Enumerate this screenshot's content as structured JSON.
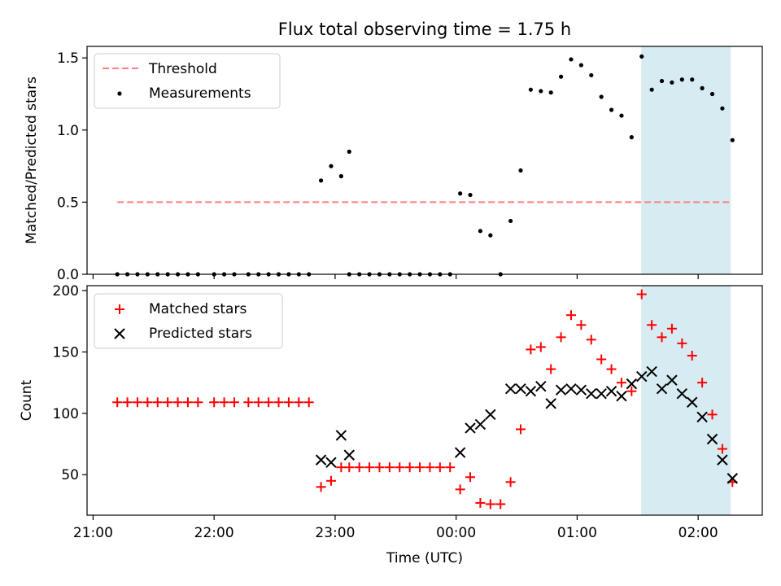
{
  "chart_data": {
    "title": "Flux total observing time = 1.75 h",
    "xlabel": "Time (UTC)",
    "x_ticks": [
      "21:00",
      "22:00",
      "23:00",
      "00:00",
      "01:00",
      "02:00"
    ],
    "x_tick_hours": [
      21,
      22,
      23,
      24,
      25,
      26
    ],
    "xlim_hours": [
      20.95,
      26.53
    ],
    "shaded_span_hours": [
      25.53,
      26.27
    ],
    "shade_color": "#add8e6",
    "panels": [
      {
        "type": "scatter",
        "ylabel": "Matched/Predicted stars",
        "ylim": [
          0,
          1.58
        ],
        "y_ticks": [
          0.0,
          0.5,
          1.0,
          1.5
        ],
        "y_tick_labels": [
          "0.0",
          "0.5",
          "1.0",
          "1.5"
        ],
        "legend": {
          "position": "top-left",
          "entries": [
            "Threshold",
            "Measurements"
          ]
        },
        "threshold": {
          "name": "Threshold",
          "value": 0.5,
          "x_range_hours": [
            21.2,
            26.27
          ],
          "color": "#ff7f7f"
        },
        "series": [
          {
            "name": "Measurements",
            "marker": "dot",
            "color": "#000000",
            "points": [
              [
                "21:12",
                0
              ],
              [
                "21:17",
                0
              ],
              [
                "21:22",
                0
              ],
              [
                "21:27",
                0
              ],
              [
                "21:32",
                0
              ],
              [
                "21:37",
                0
              ],
              [
                "21:42",
                0
              ],
              [
                "21:47",
                0
              ],
              [
                "21:52",
                0
              ],
              [
                "22:00",
                0
              ],
              [
                "22:05",
                0
              ],
              [
                "22:10",
                0
              ],
              [
                "22:17",
                0
              ],
              [
                "22:22",
                0
              ],
              [
                "22:27",
                0
              ],
              [
                "22:32",
                0
              ],
              [
                "22:37",
                0
              ],
              [
                "22:42",
                0
              ],
              [
                "22:47",
                0
              ],
              [
                "22:53",
                0.65
              ],
              [
                "22:58",
                0.75
              ],
              [
                "23:03",
                0.68
              ],
              [
                "23:07",
                0.85
              ],
              [
                "23:07",
                0
              ],
              [
                "23:12",
                0
              ],
              [
                "23:17",
                0
              ],
              [
                "23:22",
                0
              ],
              [
                "23:27",
                0
              ],
              [
                "23:32",
                0
              ],
              [
                "23:37",
                0
              ],
              [
                "23:42",
                0
              ],
              [
                "23:47",
                0
              ],
              [
                "23:52",
                0
              ],
              [
                "23:57",
                0
              ],
              [
                "00:02",
                0.56
              ],
              [
                "00:07",
                0.55
              ],
              [
                "00:12",
                0.3
              ],
              [
                "00:17",
                0.27
              ],
              [
                "00:22",
                0
              ],
              [
                "00:27",
                0.37
              ],
              [
                "00:32",
                0.72
              ],
              [
                "00:37",
                1.28
              ],
              [
                "00:42",
                1.27
              ],
              [
                "00:47",
                1.26
              ],
              [
                "00:52",
                1.37
              ],
              [
                "00:57",
                1.49
              ],
              [
                "01:02",
                1.45
              ],
              [
                "01:07",
                1.38
              ],
              [
                "01:12",
                1.23
              ],
              [
                "01:17",
                1.14
              ],
              [
                "01:22",
                1.1
              ],
              [
                "01:27",
                0.95
              ],
              [
                "01:32",
                1.51
              ],
              [
                "01:37",
                1.28
              ],
              [
                "01:42",
                1.34
              ],
              [
                "01:47",
                1.33
              ],
              [
                "01:52",
                1.35
              ],
              [
                "01:57",
                1.35
              ],
              [
                "02:02",
                1.29
              ],
              [
                "02:07",
                1.25
              ],
              [
                "02:12",
                1.15
              ],
              [
                "02:17",
                0.93
              ]
            ]
          }
        ]
      },
      {
        "type": "scatter",
        "ylabel": "Count",
        "ylim": [
          17,
          204
        ],
        "y_ticks": [
          50,
          100,
          150,
          200
        ],
        "y_tick_labels": [
          "50",
          "100",
          "150",
          "200"
        ],
        "legend": {
          "position": "top-left",
          "entries": [
            "Matched stars",
            "Predicted stars"
          ]
        },
        "series": [
          {
            "name": "Matched stars",
            "marker": "plus",
            "color": "#ff0000",
            "points": [
              [
                "21:12",
                109
              ],
              [
                "21:17",
                109
              ],
              [
                "21:22",
                109
              ],
              [
                "21:27",
                109
              ],
              [
                "21:32",
                109
              ],
              [
                "21:37",
                109
              ],
              [
                "21:42",
                109
              ],
              [
                "21:47",
                109
              ],
              [
                "21:52",
                109
              ],
              [
                "22:00",
                109
              ],
              [
                "22:05",
                109
              ],
              [
                "22:10",
                109
              ],
              [
                "22:17",
                109
              ],
              [
                "22:22",
                109
              ],
              [
                "22:27",
                109
              ],
              [
                "22:32",
                109
              ],
              [
                "22:37",
                109
              ],
              [
                "22:42",
                109
              ],
              [
                "22:47",
                109
              ],
              [
                "22:53",
                40
              ],
              [
                "22:58",
                45
              ],
              [
                "23:03",
                56
              ],
              [
                "23:07",
                56
              ],
              [
                "23:12",
                56
              ],
              [
                "23:17",
                56
              ],
              [
                "23:22",
                56
              ],
              [
                "23:27",
                56
              ],
              [
                "23:32",
                56
              ],
              [
                "23:37",
                56
              ],
              [
                "23:42",
                56
              ],
              [
                "23:47",
                56
              ],
              [
                "23:52",
                56
              ],
              [
                "23:57",
                56
              ],
              [
                "00:02",
                38
              ],
              [
                "00:07",
                48
              ],
              [
                "00:12",
                27
              ],
              [
                "00:17",
                26
              ],
              [
                "00:22",
                26
              ],
              [
                "00:27",
                44
              ],
              [
                "00:32",
                87
              ],
              [
                "00:37",
                152
              ],
              [
                "00:42",
                154
              ],
              [
                "00:47",
                136
              ],
              [
                "00:52",
                162
              ],
              [
                "00:57",
                180
              ],
              [
                "01:02",
                172
              ],
              [
                "01:07",
                160
              ],
              [
                "01:12",
                144
              ],
              [
                "01:17",
                136
              ],
              [
                "01:22",
                125
              ],
              [
                "01:27",
                118
              ],
              [
                "01:32",
                197
              ],
              [
                "01:37",
                172
              ],
              [
                "01:42",
                162
              ],
              [
                "01:47",
                169
              ],
              [
                "01:52",
                157
              ],
              [
                "01:57",
                147
              ],
              [
                "02:02",
                125
              ],
              [
                "02:07",
                99
              ],
              [
                "02:12",
                71
              ],
              [
                "02:17",
                44
              ]
            ]
          },
          {
            "name": "Predicted stars",
            "marker": "x",
            "color": "#000000",
            "points": [
              [
                "22:53",
                62
              ],
              [
                "22:58",
                60
              ],
              [
                "23:03",
                82
              ],
              [
                "23:07",
                66
              ],
              [
                "00:02",
                68
              ],
              [
                "00:07",
                88
              ],
              [
                "00:12",
                91
              ],
              [
                "00:17",
                99
              ],
              [
                "00:27",
                120
              ],
              [
                "00:32",
                120
              ],
              [
                "00:37",
                118
              ],
              [
                "00:42",
                122
              ],
              [
                "00:47",
                108
              ],
              [
                "00:52",
                119
              ],
              [
                "00:57",
                120
              ],
              [
                "01:02",
                119
              ],
              [
                "01:07",
                116
              ],
              [
                "01:12",
                116
              ],
              [
                "01:17",
                118
              ],
              [
                "01:22",
                114
              ],
              [
                "01:27",
                124
              ],
              [
                "01:32",
                130
              ],
              [
                "01:37",
                134
              ],
              [
                "01:42",
                120
              ],
              [
                "01:47",
                127
              ],
              [
                "01:52",
                116
              ],
              [
                "01:57",
                109
              ],
              [
                "02:02",
                97
              ],
              [
                "02:07",
                79
              ],
              [
                "02:12",
                62
              ],
              [
                "02:17",
                47
              ]
            ]
          }
        ]
      }
    ]
  }
}
